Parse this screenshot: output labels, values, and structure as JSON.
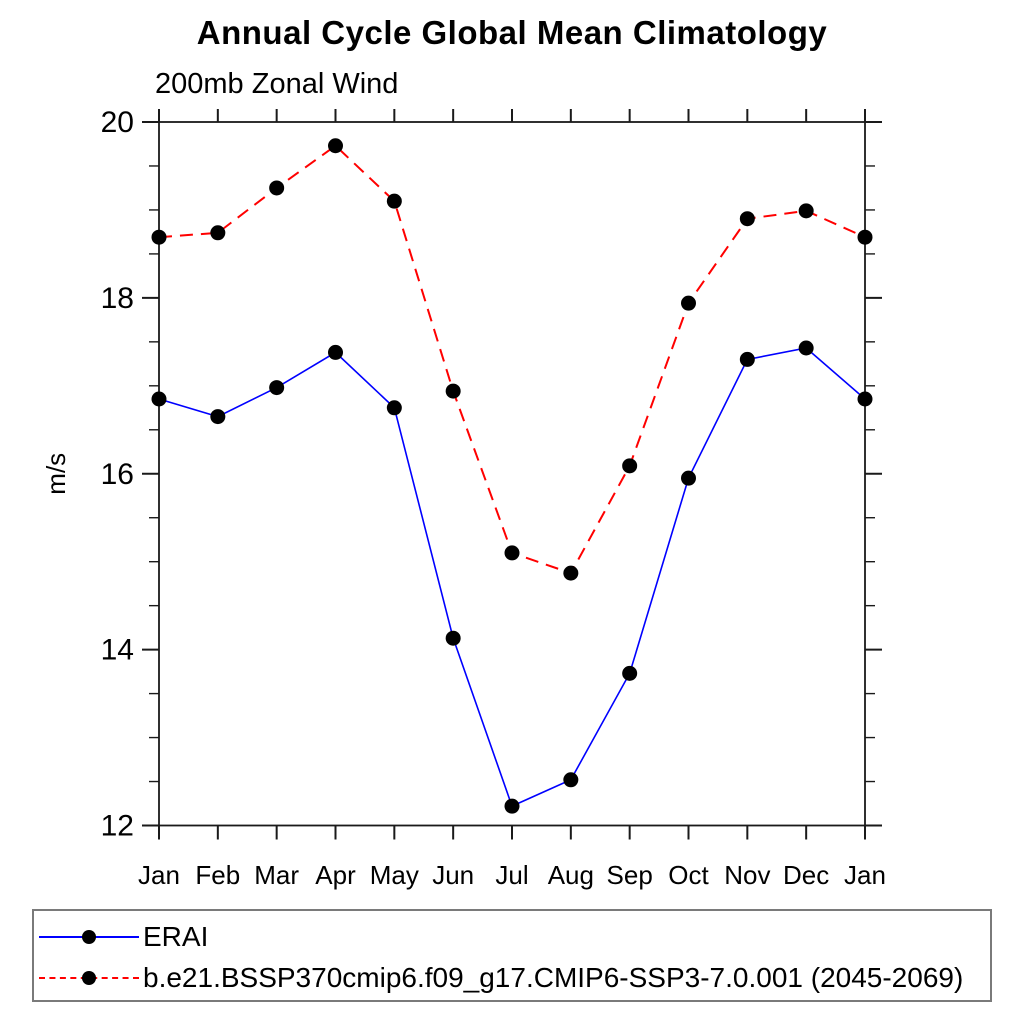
{
  "header": {
    "title": "Annual Cycle Global Mean Climatology",
    "subtitle": "200mb Zonal Wind"
  },
  "chart_data": {
    "type": "line",
    "title": "Annual Cycle Global Mean Climatology",
    "subtitle": "200mb Zonal Wind",
    "xlabel": "",
    "ylabel": "m/s",
    "categories": [
      "Jan",
      "Feb",
      "Mar",
      "Apr",
      "May",
      "Jun",
      "Jul",
      "Aug",
      "Sep",
      "Oct",
      "Nov",
      "Dec",
      "Jan"
    ],
    "series": [
      {
        "name": "ERAI",
        "color": "#0000ff",
        "line_style": "solid",
        "marker": "filled-circle",
        "marker_color": "#000000",
        "values": [
          16.85,
          16.65,
          16.98,
          17.38,
          16.75,
          14.13,
          12.22,
          12.52,
          13.73,
          15.95,
          17.3,
          17.43,
          16.85
        ]
      },
      {
        "name": "b.e21.BSSP370cmip6.f09_g17.CMIP6-SSP3-7.0.001 (2045-2069)",
        "color": "#ff0000",
        "line_style": "dashed",
        "marker": "filled-circle",
        "marker_color": "#000000",
        "values": [
          18.69,
          18.74,
          19.25,
          19.73,
          19.1,
          16.94,
          15.1,
          14.87,
          16.09,
          17.94,
          18.9,
          18.99,
          18.69
        ]
      }
    ],
    "ylim": [
      12,
      20
    ],
    "yticks": [
      12,
      14,
      16,
      18,
      20
    ],
    "y_minor_step": 0.5,
    "grid": false,
    "legend_position": "bottom-left-box",
    "axis_color": "#1a1a1a"
  }
}
